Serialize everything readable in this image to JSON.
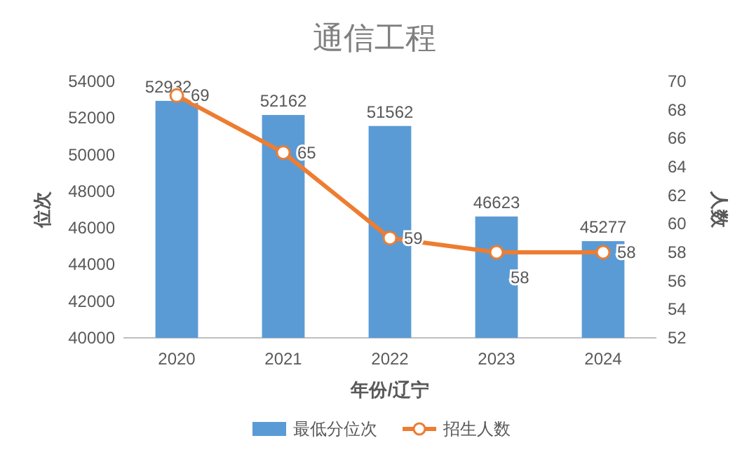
{
  "chart_data": {
    "type": "bar",
    "title": "通信工程",
    "xlabel": "年份/辽宁",
    "ylabel": "位次",
    "y2label": "人数",
    "categories": [
      "2020",
      "2021",
      "2022",
      "2023",
      "2024"
    ],
    "series": [
      {
        "name": "最低分位次",
        "color": "#5b9bd5",
        "values": [
          52932,
          52162,
          51562,
          46623,
          45277
        ]
      },
      {
        "name": "招生人数",
        "type": "line",
        "axis": "y2",
        "color": "#ed7d31",
        "marker": "circle",
        "values": [
          69,
          65,
          59,
          58,
          58
        ]
      }
    ],
    "ylim": [
      40000,
      54000
    ],
    "yticks": [
      40000,
      42000,
      44000,
      46000,
      48000,
      50000,
      52000,
      54000
    ],
    "y2lim": [
      52,
      70
    ],
    "y2ticks": [
      52,
      54,
      56,
      58,
      60,
      62,
      64,
      66,
      68,
      70
    ],
    "data_labels": true,
    "legend": "bottom",
    "grid": false
  }
}
